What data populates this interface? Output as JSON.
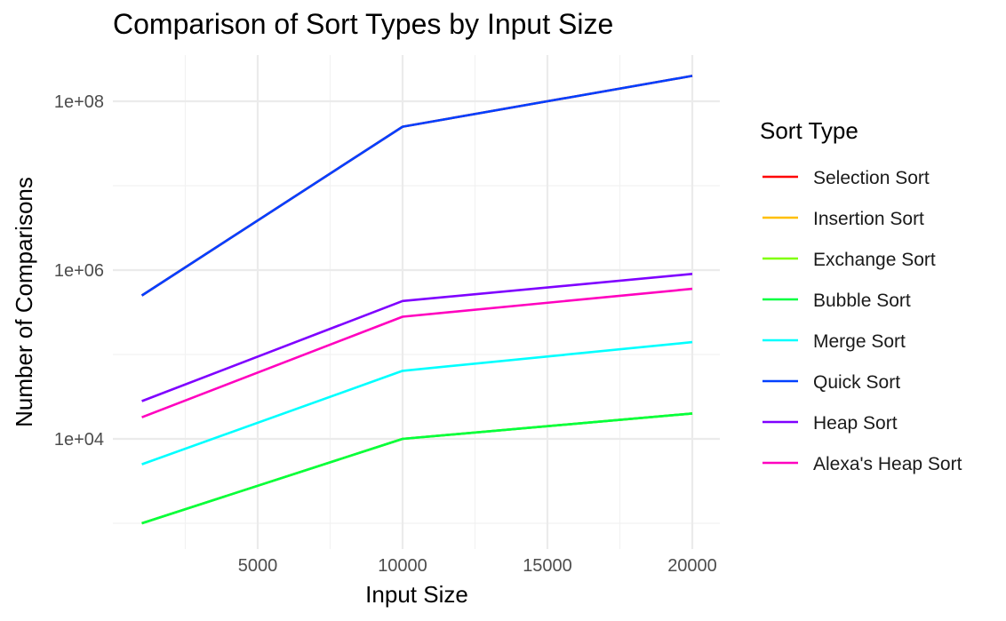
{
  "chart_data": {
    "type": "line",
    "title": "Comparison of Sort Types by Input Size",
    "xlabel": "Input Size",
    "ylabel": "Number of Comparisons",
    "x_scale": "linear",
    "y_scale": "log10",
    "xlim": [
      1000,
      20000
    ],
    "ylim": [
      600,
      400000000
    ],
    "x_ticks": [
      5000,
      10000,
      15000,
      20000
    ],
    "x_tick_labels": [
      "5000",
      "10000",
      "15000",
      "20000"
    ],
    "y_ticks": [
      10000,
      1000000,
      100000000
    ],
    "y_tick_labels": [
      "1e+04",
      "1e+06",
      "1e+08"
    ],
    "grid": true,
    "legend_title": "Sort Type",
    "legend_position": "right",
    "x": [
      1000,
      10000,
      20000
    ],
    "series": [
      {
        "name": "Selection Sort",
        "color": "#ff0000",
        "values": [
          500000,
          50000000,
          200000000
        ]
      },
      {
        "name": "Insertion Sort",
        "color": "#ffbf00",
        "values": [
          1000,
          10000,
          20000
        ]
      },
      {
        "name": "Exchange Sort",
        "color": "#80ff00",
        "values": [
          1000,
          10000,
          20000
        ]
      },
      {
        "name": "Bubble Sort",
        "color": "#00ff40",
        "values": [
          1000,
          10000,
          20000
        ]
      },
      {
        "name": "Merge Sort",
        "color": "#00ffff",
        "values": [
          5000,
          64000,
          140000
        ]
      },
      {
        "name": "Quick Sort",
        "color": "#0040ff",
        "values": [
          500000,
          50000000,
          200000000
        ]
      },
      {
        "name": "Heap Sort",
        "color": "#7f00ff",
        "values": [
          28000,
          430000,
          900000
        ]
      },
      {
        "name": "Alexa's Heap Sort",
        "color": "#ff00bf",
        "values": [
          18000,
          280000,
          600000
        ]
      }
    ]
  }
}
